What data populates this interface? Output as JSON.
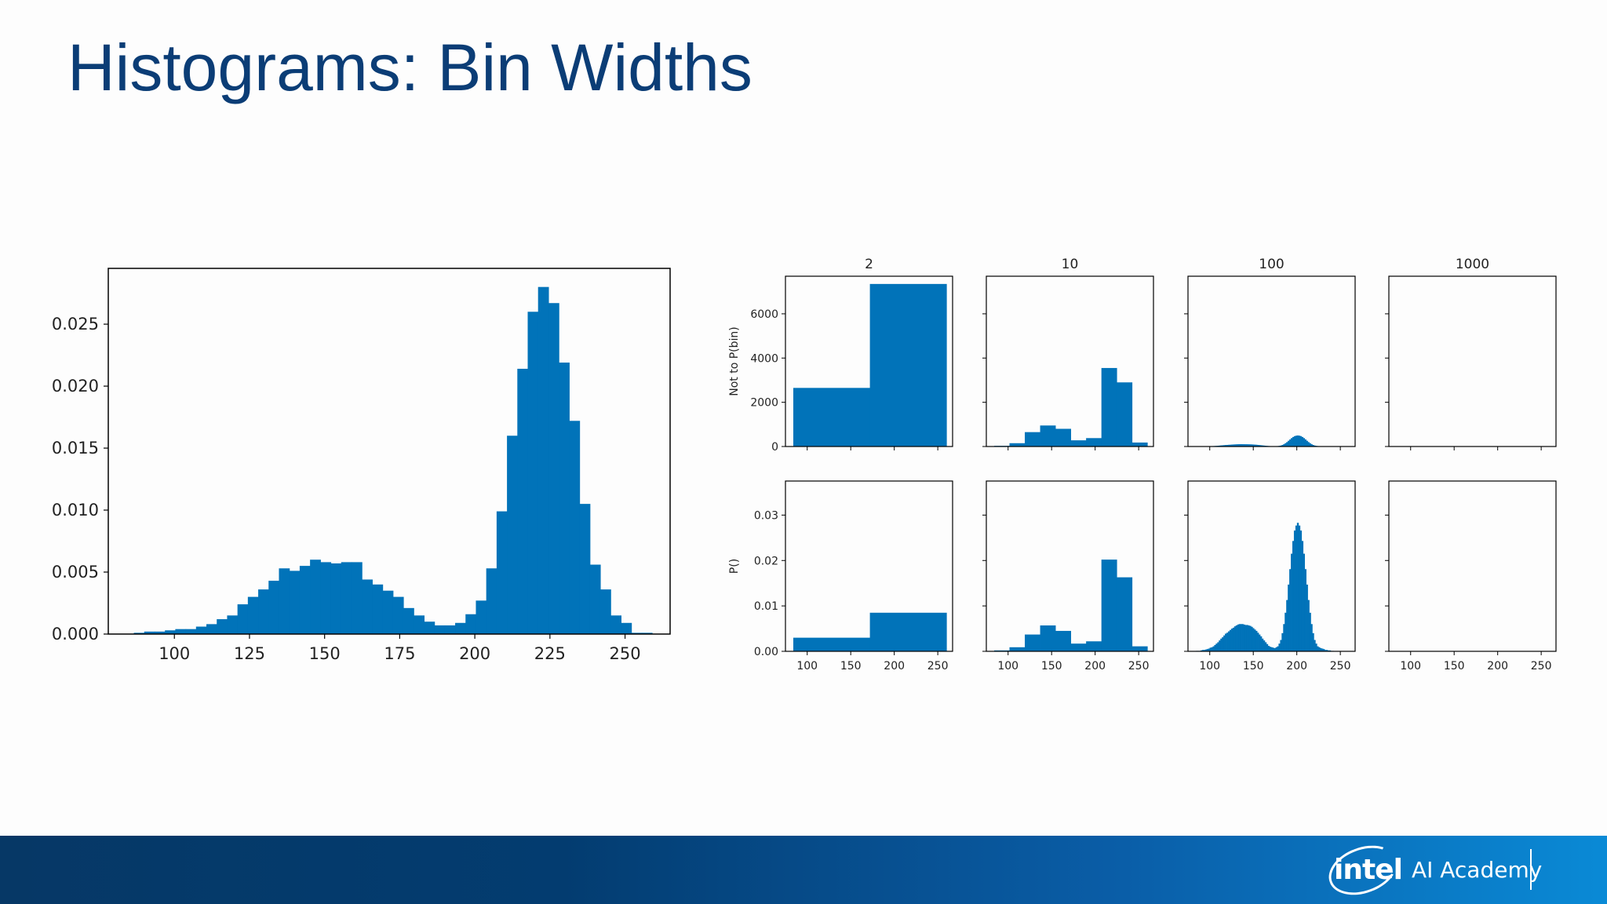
{
  "slide": {
    "title": "Histograms: Bin Widths"
  },
  "footer": {
    "logo_text": "intel",
    "brand_text": "AI Academy"
  },
  "colors": {
    "bar": "#0173b9",
    "title": "#0b3d76"
  },
  "chart_data": [
    {
      "type": "bar",
      "title": "",
      "xlabel": "",
      "ylabel": "",
      "xlim": [
        78,
        265
      ],
      "ylim": [
        0,
        0.0295
      ],
      "xticks": [
        100,
        125,
        150,
        175,
        200,
        225,
        250
      ],
      "xtick_labels": [
        "100",
        "125",
        "150",
        "175",
        "200",
        "225",
        "250"
      ],
      "yticks": [
        0,
        0.005,
        0.01,
        0.015,
        0.02,
        0.025
      ],
      "ytick_labels": [
        "0.000",
        "0.005",
        "0.010",
        "0.015",
        "0.020",
        "0.025"
      ],
      "bin_start": 86.5,
      "bin_width": 3.45,
      "values": [
        0.0001,
        0.0002,
        0.0002,
        0.0003,
        0.0004,
        0.0004,
        0.0006,
        0.0008,
        0.0012,
        0.0015,
        0.0024,
        0.003,
        0.0036,
        0.0043,
        0.0053,
        0.0051,
        0.0055,
        0.006,
        0.0058,
        0.0057,
        0.0058,
        0.0058,
        0.0044,
        0.004,
        0.0035,
        0.003,
        0.0021,
        0.0015,
        0.001,
        0.0007,
        0.0007,
        0.0009,
        0.0016,
        0.0027,
        0.0053,
        0.0099,
        0.016,
        0.0214,
        0.026,
        0.028,
        0.0267,
        0.0219,
        0.0172,
        0.0105,
        0.0056,
        0.0036,
        0.0015,
        0.0009,
        0.0001,
        0.0001
      ]
    },
    {
      "type": "bar",
      "layout": "grid",
      "columns": [
        "2",
        "10",
        "100",
        "1000"
      ],
      "row_ylabels": [
        "Not to P(bin)",
        "P()"
      ],
      "xlim": [
        75,
        267
      ],
      "xticks": [
        100,
        150,
        200,
        250
      ],
      "xtick_labels": [
        "100",
        "150",
        "200",
        "250"
      ],
      "rows": [
        {
          "ylim": [
            0,
            7700
          ],
          "yticks": [
            0,
            2000,
            4000,
            6000
          ],
          "ytick_labels": [
            "0",
            "2000",
            "4000",
            "6000"
          ],
          "panels": [
            {
              "bin_start": 84,
              "bin_width": 88,
              "values": [
                2650,
                7350
              ]
            },
            {
              "bin_start": 84,
              "bin_width": 17.6,
              "values": [
                30,
                150,
                650,
                950,
                800,
                280,
                380,
                3550,
                2900,
                180
              ]
            },
            {
              "bin_start": 84,
              "bin_width": 1.76,
              "values": [
                2,
                3,
                3,
                4,
                5,
                6,
                8,
                10,
                12,
                15,
                18,
                20,
                25,
                30,
                35,
                42,
                50,
                55,
                62,
                68,
                72,
                78,
                82,
                88,
                92,
                96,
                100,
                103,
                105,
                106,
                105,
                104,
                103,
                102,
                100,
                98,
                95,
                90,
                85,
                80,
                72,
                65,
                58,
                50,
                42,
                35,
                28,
                22,
                18,
                15,
                14,
                13,
                15,
                20,
                30,
                45,
                70,
                105,
                150,
                200,
                260,
                320,
                380,
                430,
                470,
                490,
                500,
                490,
                470,
                430,
                380,
                320,
                260,
                200,
                150,
                105,
                70,
                45,
                30,
                20,
                15,
                12,
                10,
                8,
                6,
                5,
                4,
                3,
                3,
                2
              ]
            },
            {
              "bin_start": 84,
              "bin_width": 0.176,
              "values": []
            }
          ]
        },
        {
          "ylim": [
            0,
            0.0375
          ],
          "yticks": [
            0,
            0.01,
            0.02,
            0.03
          ],
          "ytick_labels": [
            "0.00",
            "0.01",
            "0.02",
            "0.03"
          ],
          "panels": [
            {
              "bin_start": 84,
              "bin_width": 88,
              "values": [
                0.003,
                0.0085
              ]
            },
            {
              "bin_start": 84,
              "bin_width": 17.6,
              "values": [
                0.0002,
                0.0009,
                0.0037,
                0.0057,
                0.0045,
                0.0017,
                0.0022,
                0.0202,
                0.0163,
                0.0011
              ]
            },
            {
              "bin_start": 84,
              "bin_width": 1.76,
              "values": [
                0.0001,
                0.0001,
                0.0001,
                0.0002,
                0.0003,
                0.0003,
                0.0004,
                0.0005,
                0.0006,
                0.0008,
                0.0009,
                0.0011,
                0.0014,
                0.0017,
                0.002,
                0.0024,
                0.0028,
                0.0031,
                0.0035,
                0.0039,
                0.0041,
                0.0044,
                0.0047,
                0.005,
                0.0052,
                0.0055,
                0.0057,
                0.0059,
                0.006,
                0.006,
                0.006,
                0.0059,
                0.0058,
                0.0058,
                0.0057,
                0.0056,
                0.0054,
                0.0051,
                0.0048,
                0.0045,
                0.0041,
                0.0037,
                0.0033,
                0.0028,
                0.0024,
                0.002,
                0.0016,
                0.0012,
                0.001,
                0.0009,
                0.0008,
                0.0007,
                0.0009,
                0.0011,
                0.0017,
                0.0025,
                0.004,
                0.006,
                0.0085,
                0.0113,
                0.0147,
                0.0181,
                0.0215,
                0.0243,
                0.0266,
                0.0277,
                0.0283,
                0.0277,
                0.0266,
                0.0243,
                0.0215,
                0.0181,
                0.0147,
                0.0113,
                0.0085,
                0.006,
                0.004,
                0.0025,
                0.0017,
                0.0011,
                0.0009,
                0.0007,
                0.0006,
                0.0005,
                0.0003,
                0.0003,
                0.0002,
                0.0002,
                0.0001,
                0.0001
              ]
            },
            {
              "bin_start": 84,
              "bin_width": 0.176,
              "values": []
            }
          ]
        }
      ]
    }
  ]
}
